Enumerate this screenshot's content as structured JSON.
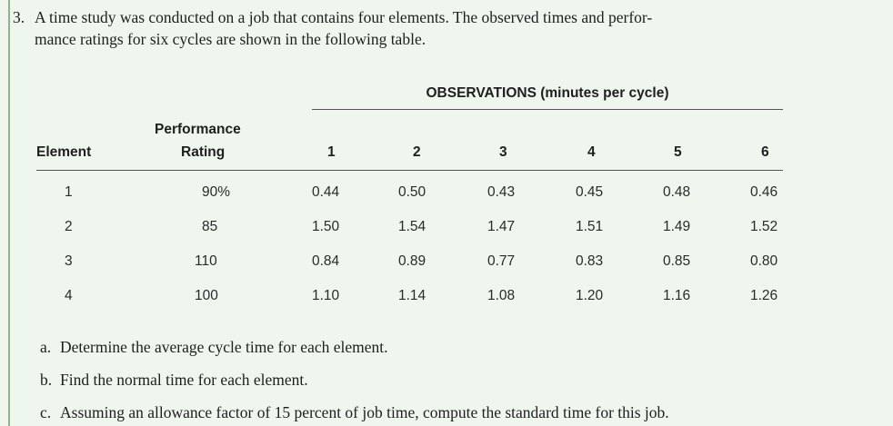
{
  "problem": {
    "number": "3.",
    "line1": "A time study was conducted on a job that contains four elements. The observed times and perfor-",
    "line2": "mance ratings for six cycles are shown in the following table."
  },
  "table": {
    "observations_title": "OBSERVATIONS (minutes per cycle)",
    "header": {
      "element": "Element",
      "performance_line1": "Performance",
      "performance_line2": "Rating",
      "cycles": [
        "1",
        "2",
        "3",
        "4",
        "5",
        "6"
      ]
    },
    "rows": [
      {
        "element": "1",
        "rating": "90%",
        "obs": [
          "0.44",
          "0.50",
          "0.43",
          "0.45",
          "0.48",
          "0.46"
        ]
      },
      {
        "element": "2",
        "rating": "85",
        "obs": [
          "1.50",
          "1.54",
          "1.47",
          "1.51",
          "1.49",
          "1.52"
        ]
      },
      {
        "element": "3",
        "rating": "110",
        "obs": [
          "0.84",
          "0.89",
          "0.77",
          "0.83",
          "0.85",
          "0.80"
        ]
      },
      {
        "element": "4",
        "rating": "100",
        "obs": [
          "1.10",
          "1.14",
          "1.08",
          "1.20",
          "1.16",
          "1.26"
        ]
      }
    ]
  },
  "questions": [
    {
      "label": "a.",
      "text": "Determine the average cycle time for each element."
    },
    {
      "label": "b.",
      "text": "Find the normal time for each element."
    },
    {
      "label": "c.",
      "text": "Assuming an allowance factor of 15 percent of job time, compute the standard time for this job."
    }
  ]
}
